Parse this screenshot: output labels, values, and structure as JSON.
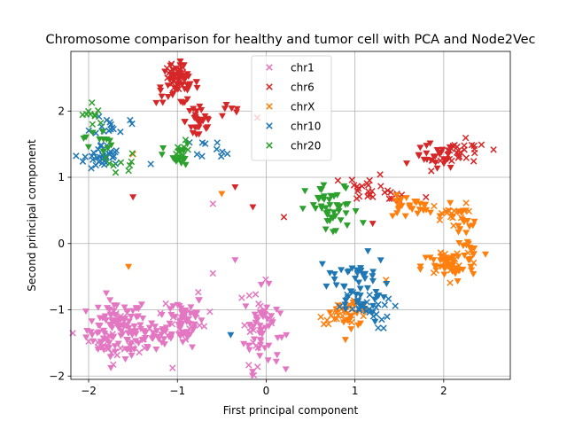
{
  "chart_data": {
    "type": "scatter",
    "title": "Chromosome comparison for healthy and tumor cell with PCA and Node2Vec",
    "xlabel": "First principal component",
    "ylabel": "Second principal component",
    "xlim": [
      -2.2,
      2.75
    ],
    "ylim": [
      -2.05,
      2.9
    ],
    "xticks": [
      -2,
      -1,
      0,
      1,
      2
    ],
    "yticks": [
      -2,
      -1,
      0,
      1,
      2
    ],
    "grid": true,
    "legend_position": "top-center",
    "marker_legend": "x",
    "series": [
      {
        "name": "chr1",
        "color": "#e377c2",
        "clusters": [
          {
            "cx": -1.7,
            "cy": -1.3,
            "sx": 0.16,
            "sy": 0.22,
            "n": 90,
            "marker": "v"
          },
          {
            "cx": -1.3,
            "cy": -1.4,
            "sx": 0.12,
            "sy": 0.14,
            "n": 35,
            "marker": "v"
          },
          {
            "cx": -0.95,
            "cy": -1.15,
            "sx": 0.13,
            "sy": 0.2,
            "n": 55,
            "marker": "v"
          },
          {
            "cx": -0.05,
            "cy": -1.3,
            "sx": 0.1,
            "sy": 0.3,
            "n": 50,
            "marker": "v"
          },
          {
            "cx": -1.6,
            "cy": -1.4,
            "sx": 0.2,
            "sy": 0.2,
            "n": 30,
            "marker": "x"
          },
          {
            "cx": -0.9,
            "cy": -1.2,
            "sx": 0.15,
            "sy": 0.2,
            "n": 15,
            "marker": "x"
          },
          {
            "cx": -0.1,
            "cy": -1.2,
            "sx": 0.1,
            "sy": 0.3,
            "n": 20,
            "marker": "x"
          }
        ],
        "points": [
          {
            "x": -0.35,
            "y": -0.25,
            "marker": "v"
          },
          {
            "x": -0.6,
            "y": 0.6,
            "marker": "x"
          },
          {
            "x": -0.6,
            "y": -0.45,
            "marker": "x"
          }
        ]
      },
      {
        "name": "chr6",
        "color": "#d62728",
        "clusters": [
          {
            "cx": -1.0,
            "cy": 2.4,
            "sx": 0.12,
            "sy": 0.15,
            "n": 50,
            "marker": "v"
          },
          {
            "cx": -0.75,
            "cy": 1.85,
            "sx": 0.08,
            "sy": 0.18,
            "n": 30,
            "marker": "v"
          },
          {
            "cx": -1.05,
            "cy": 2.5,
            "sx": 0.07,
            "sy": 0.1,
            "n": 20,
            "marker": "x"
          },
          {
            "cx": -0.4,
            "cy": 2.0,
            "sx": 0.1,
            "sy": 0.05,
            "n": 6,
            "marker": "v"
          },
          {
            "cx": 1.9,
            "cy": 1.3,
            "sx": 0.12,
            "sy": 0.1,
            "n": 25,
            "marker": "v"
          },
          {
            "cx": 2.2,
            "cy": 1.35,
            "sx": 0.15,
            "sy": 0.1,
            "n": 30,
            "marker": "x"
          },
          {
            "cx": 1.15,
            "cy": 0.85,
            "sx": 0.12,
            "sy": 0.1,
            "n": 20,
            "marker": "x"
          },
          {
            "cx": 1.4,
            "cy": 0.75,
            "sx": 0.1,
            "sy": 0.05,
            "n": 8,
            "marker": "x"
          }
        ],
        "points": [
          {
            "x": -1.5,
            "y": 0.7,
            "marker": "v"
          },
          {
            "x": -0.35,
            "y": 0.85,
            "marker": "v"
          },
          {
            "x": -0.15,
            "y": 0.55,
            "marker": "v"
          },
          {
            "x": 0.2,
            "y": 0.4,
            "marker": "x"
          },
          {
            "x": -0.1,
            "y": 1.9,
            "marker": "x"
          },
          {
            "x": 1.2,
            "y": 0.3,
            "marker": "v"
          },
          {
            "x": 1.8,
            "y": 0.7,
            "marker": "x"
          }
        ]
      },
      {
        "name": "chrX",
        "color": "#ff7f0e",
        "clusters": [
          {
            "cx": 0.9,
            "cy": -1.05,
            "sx": 0.15,
            "sy": 0.08,
            "n": 30,
            "marker": "x"
          },
          {
            "cx": 0.95,
            "cy": -1.05,
            "sx": 0.1,
            "sy": 0.1,
            "n": 15,
            "marker": "v"
          },
          {
            "cx": 1.6,
            "cy": 0.55,
            "sx": 0.15,
            "sy": 0.08,
            "n": 30,
            "marker": "v"
          },
          {
            "cx": 2.05,
            "cy": 0.45,
            "sx": 0.1,
            "sy": 0.08,
            "n": 15,
            "marker": "x"
          },
          {
            "cx": 2.2,
            "cy": 0.3,
            "sx": 0.1,
            "sy": 0.12,
            "n": 15,
            "marker": "v"
          },
          {
            "cx": 2.05,
            "cy": -0.35,
            "sx": 0.15,
            "sy": 0.12,
            "n": 40,
            "marker": "v"
          },
          {
            "cx": 2.3,
            "cy": -0.1,
            "sx": 0.08,
            "sy": 0.1,
            "n": 15,
            "marker": "v"
          },
          {
            "cx": 2.1,
            "cy": -0.25,
            "sx": 0.15,
            "sy": 0.12,
            "n": 20,
            "marker": "x"
          }
        ],
        "points": [
          {
            "x": -1.55,
            "y": -0.35,
            "marker": "v"
          },
          {
            "x": -0.5,
            "y": 0.75,
            "marker": "v"
          },
          {
            "x": -1.5,
            "y": 1.35,
            "marker": "x"
          },
          {
            "x": 1.35,
            "y": -0.55,
            "marker": "x"
          }
        ]
      },
      {
        "name": "chr10",
        "color": "#1f77b4",
        "clusters": [
          {
            "cx": -1.85,
            "cy": 1.3,
            "sx": 0.1,
            "sy": 0.1,
            "n": 35,
            "marker": "x"
          },
          {
            "cx": -1.75,
            "cy": 1.8,
            "sx": 0.1,
            "sy": 0.08,
            "n": 15,
            "marker": "x"
          },
          {
            "cx": -0.55,
            "cy": 1.45,
            "sx": 0.12,
            "sy": 0.07,
            "n": 10,
            "marker": "x"
          },
          {
            "cx": 1.05,
            "cy": -0.7,
            "sx": 0.15,
            "sy": 0.25,
            "n": 40,
            "marker": "v"
          },
          {
            "cx": 1.1,
            "cy": -1.0,
            "sx": 0.15,
            "sy": 0.15,
            "n": 25,
            "marker": "x"
          },
          {
            "cx": 0.8,
            "cy": -0.5,
            "sx": 0.1,
            "sy": 0.1,
            "n": 12,
            "marker": "v"
          }
        ],
        "points": [
          {
            "x": -1.3,
            "y": 1.2,
            "marker": "x"
          },
          {
            "x": -0.4,
            "y": -1.38,
            "marker": "v"
          }
        ]
      },
      {
        "name": "chr20",
        "color": "#2ca02c",
        "clusters": [
          {
            "cx": -1.95,
            "cy": 1.95,
            "sx": 0.06,
            "sy": 0.1,
            "n": 10,
            "marker": "x"
          },
          {
            "cx": -1.9,
            "cy": 1.55,
            "sx": 0.08,
            "sy": 0.1,
            "n": 12,
            "marker": "v"
          },
          {
            "cx": -1.65,
            "cy": 1.25,
            "sx": 0.1,
            "sy": 0.08,
            "n": 8,
            "marker": "x"
          },
          {
            "cx": -1.0,
            "cy": 1.3,
            "sx": 0.08,
            "sy": 0.1,
            "n": 18,
            "marker": "v"
          },
          {
            "cx": -0.95,
            "cy": 1.35,
            "sx": 0.05,
            "sy": 0.1,
            "n": 8,
            "marker": "x"
          },
          {
            "cx": 0.75,
            "cy": 0.5,
            "sx": 0.15,
            "sy": 0.2,
            "n": 45,
            "marker": "v"
          }
        ],
        "points": [
          {
            "x": -1.55,
            "y": 1.1,
            "marker": "x"
          }
        ]
      }
    ]
  }
}
